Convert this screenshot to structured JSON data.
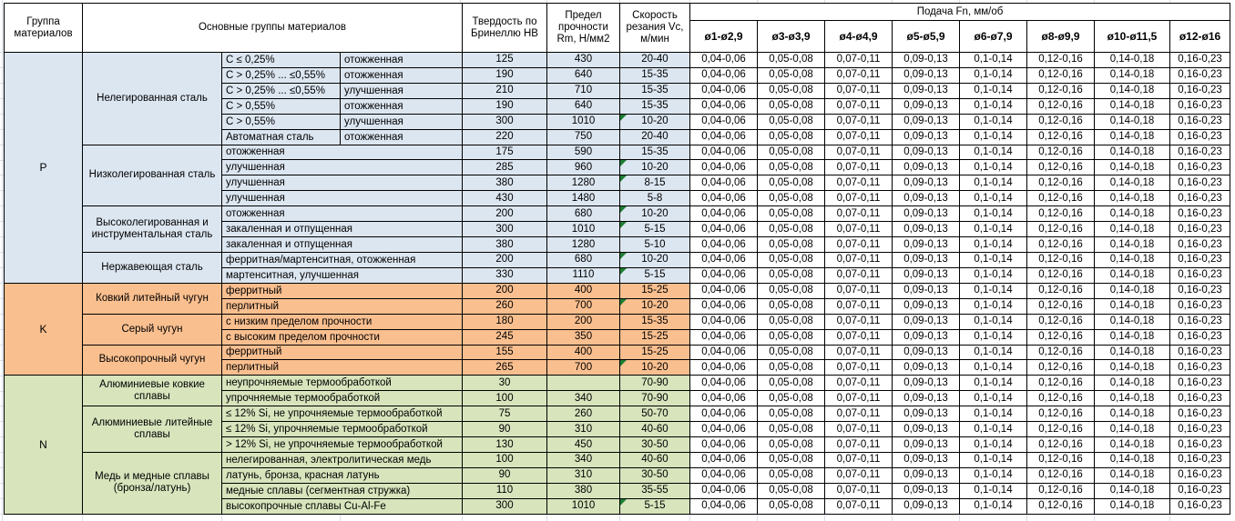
{
  "header": {
    "group": "Группа материалов",
    "main": "Основные группы материалов",
    "hb": "Твердость по Бринеллю HB",
    "rm": "Предел прочности Rm, Н/мм2",
    "vc": "Скорость резания Vc, м/мин",
    "feed_title": "Подача Fn, мм/об",
    "feed_cols": [
      "ø1-ø2,9",
      "ø3-ø3,9",
      "ø4-ø4,9",
      "ø5-ø5,9",
      "ø6-ø7,9",
      "ø8-ø9,9",
      "ø10-ø11,5",
      "ø12-ø16"
    ]
  },
  "feed_values": [
    "0,04-0,06",
    "0,05-0,08",
    "0,07-0,11",
    "0,09-0,13",
    "0,1-0,14",
    "0,12-0,16",
    "0,14-0,18",
    "0,16-0,23"
  ],
  "colors": {
    "group_p_fill": "#DCE6F1",
    "group_k_fill": "#FABF8F",
    "group_n_fill": "#D7E4BC",
    "flag_green": "#1E7E34",
    "border": "#000000",
    "gridline": "#D8DEE8"
  },
  "groups": [
    {
      "label": "P",
      "fill_key": "group_p_fill",
      "subgroups": [
        {
          "name": "Нелегированная сталь",
          "rows": [
            {
              "c": "С ≤ 0,25%",
              "state": "отожженная",
              "hb": "125",
              "rm": "430",
              "vc": "20-40",
              "flag": false
            },
            {
              "c": "С > 0,25% ... ≤0,55%",
              "state": "отожженная",
              "hb": "190",
              "rm": "640",
              "vc": "15-35",
              "flag": false
            },
            {
              "c": "С > 0,25% ... ≤0,55%",
              "state": "улучшенная",
              "hb": "210",
              "rm": "710",
              "vc": "15-35",
              "flag": false
            },
            {
              "c": "С > 0,55%",
              "state": "отожженная",
              "hb": "190",
              "rm": "640",
              "vc": "15-35",
              "flag": false
            },
            {
              "c": "С > 0,55%",
              "state": "улучшенная",
              "hb": "300",
              "rm": "1010",
              "vc": "10-20",
              "flag": true
            },
            {
              "c": "Автоматная сталь",
              "state": "отожженная",
              "hb": "220",
              "rm": "750",
              "vc": "20-40",
              "flag": false
            }
          ]
        },
        {
          "name": "Низколегированная сталь",
          "rows": [
            {
              "material": "отожженная",
              "hb": "175",
              "rm": "590",
              "vc": "15-35",
              "flag": false
            },
            {
              "material": "улучшенная",
              "hb": "285",
              "rm": "960",
              "vc": "10-20",
              "flag": true
            },
            {
              "material": "улучшенная",
              "hb": "380",
              "rm": "1280",
              "vc": "8-15",
              "flag": true
            },
            {
              "material": "улучшенная",
              "hb": "430",
              "rm": "1480",
              "vc": "5-8",
              "flag": false
            }
          ]
        },
        {
          "name": "Высоколегированная и инструментальная сталь",
          "rows": [
            {
              "material": "отожженная",
              "hb": "200",
              "rm": "680",
              "vc": "10-20",
              "flag": true
            },
            {
              "material": "закаленная и отпущенная",
              "hb": "300",
              "rm": "1010",
              "vc": "5-15",
              "flag": true
            },
            {
              "material": "закаленная и отпущенная",
              "hb": "380",
              "rm": "1280",
              "vc": "5-10",
              "flag": false
            }
          ]
        },
        {
          "name": "Нержавеющая сталь",
          "rows": [
            {
              "material": "ферритная/мартенситная, отожженная",
              "hb": "200",
              "rm": "680",
              "vc": "10-20",
              "flag": true
            },
            {
              "material": "мартенситная, улучшенная",
              "hb": "330",
              "rm": "1110",
              "vc": "5-15",
              "flag": true
            }
          ]
        }
      ]
    },
    {
      "label": "K",
      "fill_key": "group_k_fill",
      "subgroups": [
        {
          "name": "Ковкий литейный чугун",
          "rows": [
            {
              "material": "ферритный",
              "hb": "200",
              "rm": "400",
              "vc": "15-25",
              "flag": false
            },
            {
              "material": "перлитный",
              "hb": "260",
              "rm": "700",
              "vc": "10-20",
              "flag": true
            }
          ]
        },
        {
          "name": "Серый чугун",
          "rows": [
            {
              "material": "с низким пределом прочности",
              "hb": "180",
              "rm": "200",
              "vc": "15-35",
              "flag": false
            },
            {
              "material": "с высоким пределом прочности",
              "hb": "245",
              "rm": "350",
              "vc": "15-25",
              "flag": false
            }
          ]
        },
        {
          "name": "Высокопрочный чугун",
          "rows": [
            {
              "material": "ферритный",
              "hb": "155",
              "rm": "400",
              "vc": "15-25",
              "flag": false
            },
            {
              "material": "перлитный",
              "hb": "265",
              "rm": "700",
              "vc": "10-20",
              "flag": true
            }
          ]
        }
      ]
    },
    {
      "label": "N",
      "fill_key": "group_n_fill",
      "subgroups": [
        {
          "name": "Алюминиевые ковкие сплавы",
          "rows": [
            {
              "material": "неупрочняемые термообработкой",
              "hb": "30",
              "rm": "",
              "vc": "70-90",
              "flag": false
            },
            {
              "material": "упрочняемые термообработкой",
              "hb": "100",
              "rm": "340",
              "vc": "70-90",
              "flag": false
            }
          ]
        },
        {
          "name": "Алюминиевые литейные сплавы",
          "rows": [
            {
              "material": "≤ 12% Si, не упрочняемые термообработкой",
              "hb": "75",
              "rm": "260",
              "vc": "50-70",
              "flag": false
            },
            {
              "material": "≤ 12% Si, упрочняемые термообработкой",
              "hb": "90",
              "rm": "310",
              "vc": "40-60",
              "flag": false
            },
            {
              "material": "> 12% Si, не упрочняемые термообработкой",
              "hb": "130",
              "rm": "450",
              "vc": "30-50",
              "flag": false
            }
          ]
        },
        {
          "name": "Медь и медные сплавы (бронза/латунь)",
          "rows": [
            {
              "material": "нелегированная, электролитическая медь",
              "hb": "100",
              "rm": "340",
              "vc": "40-60",
              "flag": false
            },
            {
              "material": "латунь, бронза, красная латунь",
              "hb": "90",
              "rm": "310",
              "vc": "30-50",
              "flag": false
            },
            {
              "material": "медные сплавы (сегментная стружка)",
              "hb": "110",
              "rm": "380",
              "vc": "35-55",
              "flag": false
            },
            {
              "material": "высокопрочные сплавы Cu-Al-Fe",
              "hb": "300",
              "rm": "1010",
              "vc": "5-15",
              "flag": true
            }
          ]
        }
      ]
    }
  ]
}
